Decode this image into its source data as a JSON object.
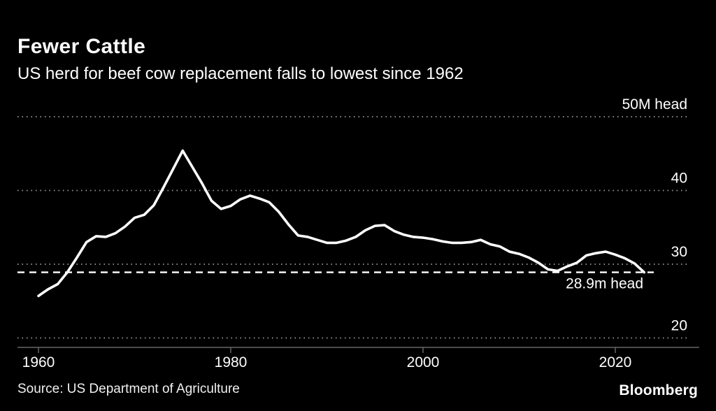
{
  "title": "Fewer Cattle",
  "subtitle": "US herd for beef cow replacement falls to lowest since 1962",
  "source": "Source: US Department of Agriculture",
  "brand": "Bloomberg",
  "colors": {
    "background": "#000000",
    "line": "#ffffff",
    "grid": "#9f9f9f",
    "axis": "#666666",
    "text": "#ffffff",
    "reference_line": "#ffffff"
  },
  "chart_data": {
    "type": "line",
    "title": "Fewer Cattle",
    "subtitle": "US herd for beef cow replacement falls to lowest since 1962",
    "series_name": "US beef cow replacement herd",
    "unit": "M head",
    "points": [
      [
        1960,
        25.7
      ],
      [
        1961,
        26.6
      ],
      [
        1962,
        27.3
      ],
      [
        1963,
        28.9
      ],
      [
        1964,
        30.9
      ],
      [
        1965,
        33.0
      ],
      [
        1966,
        33.8
      ],
      [
        1967,
        33.7
      ],
      [
        1968,
        34.2
      ],
      [
        1969,
        35.1
      ],
      [
        1970,
        36.3
      ],
      [
        1971,
        36.7
      ],
      [
        1972,
        38.0
      ],
      [
        1973,
        40.4
      ],
      [
        1974,
        42.9
      ],
      [
        1975,
        45.4
      ],
      [
        1976,
        43.2
      ],
      [
        1977,
        41.0
      ],
      [
        1978,
        38.6
      ],
      [
        1979,
        37.5
      ],
      [
        1980,
        37.9
      ],
      [
        1981,
        38.8
      ],
      [
        1982,
        39.3
      ],
      [
        1983,
        38.9
      ],
      [
        1984,
        38.4
      ],
      [
        1985,
        37.1
      ],
      [
        1986,
        35.4
      ],
      [
        1987,
        33.9
      ],
      [
        1988,
        33.7
      ],
      [
        1989,
        33.3
      ],
      [
        1990,
        32.9
      ],
      [
        1991,
        32.9
      ],
      [
        1992,
        33.2
      ],
      [
        1993,
        33.7
      ],
      [
        1994,
        34.6
      ],
      [
        1995,
        35.2
      ],
      [
        1996,
        35.3
      ],
      [
        1997,
        34.5
      ],
      [
        1998,
        34.0
      ],
      [
        1999,
        33.7
      ],
      [
        2000,
        33.6
      ],
      [
        2001,
        33.4
      ],
      [
        2002,
        33.1
      ],
      [
        2003,
        32.9
      ],
      [
        2004,
        32.9
      ],
      [
        2005,
        33.0
      ],
      [
        2006,
        33.3
      ],
      [
        2007,
        32.7
      ],
      [
        2008,
        32.4
      ],
      [
        2009,
        31.7
      ],
      [
        2010,
        31.4
      ],
      [
        2011,
        30.9
      ],
      [
        2012,
        30.2
      ],
      [
        2013,
        29.3
      ],
      [
        2014,
        29.1
      ],
      [
        2015,
        29.7
      ],
      [
        2016,
        30.2
      ],
      [
        2017,
        31.2
      ],
      [
        2018,
        31.5
      ],
      [
        2019,
        31.7
      ],
      [
        2020,
        31.3
      ],
      [
        2021,
        30.8
      ],
      [
        2022,
        30.1
      ],
      [
        2023,
        28.9
      ]
    ],
    "xlabel": "",
    "ylabel": "",
    "xlim": [
      1958,
      2027
    ],
    "ylim": [
      20,
      50
    ],
    "yticks": [
      {
        "value": 50,
        "label": "50M head"
      },
      {
        "value": 40,
        "label": "40"
      },
      {
        "value": 30,
        "label": "30"
      },
      {
        "value": 20,
        "label": "20"
      }
    ],
    "xticks": [
      {
        "value": 1960,
        "label": "1960"
      },
      {
        "value": 1980,
        "label": "1980"
      },
      {
        "value": 2000,
        "label": "2000"
      },
      {
        "value": 2020,
        "label": "2020"
      }
    ],
    "grid": "horizontal-dotted",
    "legend": "none",
    "annotation": {
      "label": "28.9m head",
      "value": 28.9,
      "style": "dashed-horizontal-line"
    }
  }
}
